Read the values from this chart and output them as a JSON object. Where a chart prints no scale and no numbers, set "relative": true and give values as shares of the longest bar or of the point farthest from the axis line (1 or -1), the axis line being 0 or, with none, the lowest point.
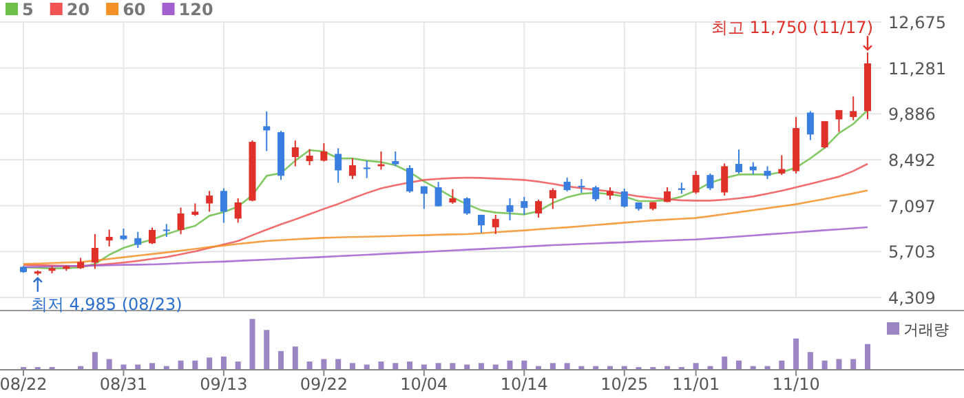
{
  "chart_data": [
    {
      "type": "candlestick",
      "ohlc": [
        [
          5240,
          5260,
          5060,
          5080
        ],
        [
          5035,
          5130,
          4985,
          5100
        ],
        [
          5120,
          5260,
          5040,
          5200
        ],
        [
          5180,
          5280,
          5120,
          5255
        ],
        [
          5200,
          5510,
          5175,
          5385
        ],
        [
          5370,
          6235,
          5180,
          5815
        ],
        [
          6040,
          6370,
          5860,
          6150
        ],
        [
          6190,
          6400,
          6050,
          6080
        ],
        [
          6110,
          6300,
          5815,
          5910
        ],
        [
          5955,
          6430,
          5930,
          6360
        ],
        [
          6370,
          6540,
          6150,
          6350
        ],
        [
          6360,
          7040,
          6230,
          6860
        ],
        [
          6820,
          7165,
          6790,
          6915
        ],
        [
          7165,
          7545,
          6915,
          7405
        ],
        [
          7545,
          7625,
          6580,
          6915
        ],
        [
          6705,
          7320,
          6580,
          7195
        ],
        [
          7250,
          9080,
          7230,
          9035
        ],
        [
          9510,
          9960,
          8755,
          9385
        ],
        [
          9330,
          9370,
          7880,
          8005
        ],
        [
          8575,
          9080,
          8295,
          8870
        ],
        [
          8450,
          8815,
          8325,
          8615
        ],
        [
          8465,
          8995,
          8440,
          8745
        ],
        [
          8670,
          8840,
          7795,
          8170
        ],
        [
          8005,
          8535,
          7905,
          8325
        ],
        [
          8255,
          8465,
          7935,
          8210
        ],
        [
          8295,
          8745,
          8190,
          8355
        ],
        [
          8450,
          8745,
          8295,
          8355
        ],
        [
          8240,
          8325,
          7490,
          7530
        ],
        [
          7685,
          7685,
          7000,
          7460
        ],
        [
          7655,
          7820,
          7070,
          7080
        ],
        [
          7195,
          7600,
          7155,
          7320
        ],
        [
          7320,
          7350,
          6820,
          6860
        ],
        [
          6820,
          6820,
          6275,
          6500
        ],
        [
          6440,
          6820,
          6235,
          6695
        ],
        [
          7110,
          7320,
          6650,
          6905
        ],
        [
          7235,
          7365,
          6820,
          7030
        ],
        [
          6860,
          7280,
          6735,
          7235
        ],
        [
          7320,
          7625,
          7000,
          7570
        ],
        [
          7825,
          7950,
          7530,
          7570
        ],
        [
          7700,
          7905,
          7490,
          7655
        ],
        [
          7655,
          7700,
          7235,
          7295
        ],
        [
          7405,
          7655,
          7280,
          7545
        ],
        [
          7530,
          7615,
          7040,
          7070
        ],
        [
          7195,
          7195,
          6945,
          7000
        ],
        [
          7000,
          7210,
          6955,
          7205
        ],
        [
          7210,
          7655,
          7205,
          7530
        ],
        [
          7625,
          7795,
          7460,
          7575
        ],
        [
          7500,
          8155,
          7460,
          8030
        ],
        [
          8030,
          8075,
          7570,
          7625
        ],
        [
          7500,
          8380,
          7405,
          8295
        ],
        [
          8365,
          8800,
          8075,
          8115
        ],
        [
          8285,
          8420,
          8045,
          8170
        ],
        [
          8155,
          8295,
          7905,
          8005
        ],
        [
          8075,
          8630,
          8030,
          8210
        ],
        [
          8145,
          9790,
          8075,
          9455
        ],
        [
          9925,
          9970,
          9090,
          9260
        ],
        [
          8870,
          9665,
          8840,
          9665
        ],
        [
          9720,
          10000,
          9340,
          10000
        ],
        [
          9790,
          10415,
          9690,
          9970
        ],
        [
          9970,
          11750,
          9720,
          11420
        ]
      ],
      "series": [
        {
          "name": "5",
          "type": "line",
          "color": "#6cc04a",
          "values": [
            5228,
            5210,
            5190,
            5200,
            5225,
            5326,
            5606,
            5815,
            5953,
            6066,
            6233,
            6371,
            6484,
            6790,
            6903,
            7070,
            7417,
            8003,
            8087,
            8463,
            8785,
            8743,
            8534,
            8534,
            8463,
            8421,
            8325,
            8115,
            7835,
            7600,
            7350,
            7140,
            6957,
            6889,
            6861,
            6832,
            6930,
            7182,
            7350,
            7459,
            7488,
            7446,
            7375,
            7237,
            7237,
            7266,
            7375,
            7560,
            7793,
            7935,
            8044,
            8044,
            8044,
            8115,
            8253,
            8534,
            8856,
            9300,
            9580,
            9998
          ]
        },
        {
          "name": "20",
          "type": "line",
          "color": "#f05454",
          "values": [
            5297,
            5290,
            5280,
            5270,
            5258,
            5290,
            5330,
            5370,
            5420,
            5480,
            5537,
            5620,
            5710,
            5815,
            5920,
            6024,
            6200,
            6371,
            6530,
            6680,
            6840,
            6999,
            7150,
            7320,
            7480,
            7626,
            7720,
            7800,
            7877,
            7910,
            7935,
            7948,
            7940,
            7920,
            7900,
            7877,
            7830,
            7760,
            7684,
            7630,
            7580,
            7530,
            7450,
            7380,
            7330,
            7290,
            7260,
            7250,
            7250,
            7280,
            7320,
            7375,
            7460,
            7550,
            7655,
            7760,
            7870,
            7977,
            8150,
            8366
          ]
        },
        {
          "name": "60",
          "type": "line",
          "color": "#f39027",
          "values": [
            5326,
            5340,
            5355,
            5370,
            5384,
            5430,
            5480,
            5530,
            5580,
            5630,
            5677,
            5730,
            5785,
            5840,
            5886,
            5935,
            5980,
            6024,
            6050,
            6075,
            6100,
            6120,
            6135,
            6145,
            6155,
            6165,
            6175,
            6190,
            6200,
            6215,
            6225,
            6233,
            6260,
            6290,
            6320,
            6345,
            6380,
            6410,
            6440,
            6475,
            6510,
            6545,
            6580,
            6615,
            6650,
            6675,
            6700,
            6723,
            6780,
            6840,
            6900,
            6960,
            7020,
            7080,
            7140,
            7220,
            7300,
            7390,
            7470,
            7560
          ]
        },
        {
          "name": "120",
          "type": "line",
          "color": "#a25fd0",
          "values": [
            5229,
            5240,
            5250,
            5260,
            5270,
            5280,
            5290,
            5300,
            5305,
            5313,
            5330,
            5350,
            5370,
            5385,
            5400,
            5420,
            5440,
            5460,
            5480,
            5500,
            5520,
            5540,
            5565,
            5585,
            5605,
            5630,
            5650,
            5670,
            5690,
            5715,
            5735,
            5760,
            5780,
            5805,
            5825,
            5850,
            5875,
            5898,
            5915,
            5935,
            5950,
            5970,
            5985,
            6005,
            6020,
            6040,
            6055,
            6070,
            6100,
            6130,
            6160,
            6190,
            6225,
            6255,
            6285,
            6320,
            6350,
            6380,
            6410,
            6442
          ]
        }
      ],
      "ylim": [
        4309,
        12675
      ],
      "yticks": [
        {
          "value": 4309,
          "label": "4,309"
        },
        {
          "value": 5703,
          "label": "5,703"
        },
        {
          "value": 7097,
          "label": "7,097"
        },
        {
          "value": 8492,
          "label": "8,492"
        },
        {
          "value": 9886,
          "label": "9,886"
        },
        {
          "value": 11281,
          "label": "11,281"
        },
        {
          "value": 12675,
          "label": "12,675"
        }
      ],
      "grid": true,
      "legend": "top left",
      "tick_labels": "y",
      "annotations": [
        "최고 11,750 (11/17)",
        "최저 4,985 (08/23)"
      ]
    },
    {
      "type": "bar",
      "categories": [
        "08/22",
        null,
        null,
        null,
        null,
        null,
        null,
        "08/31",
        null,
        null,
        null,
        null,
        null,
        null,
        "09/13",
        null,
        null,
        null,
        null,
        null,
        null,
        "09/22",
        null,
        null,
        null,
        null,
        null,
        null,
        "10/04",
        null,
        null,
        null,
        null,
        null,
        null,
        "10/14",
        null,
        null,
        null,
        null,
        null,
        null,
        "10/25",
        null,
        null,
        null,
        null,
        "11/01",
        null,
        null,
        null,
        null,
        null,
        null,
        "11/10",
        null,
        null,
        null,
        null,
        null
      ],
      "relative": true,
      "legend": "top right",
      "tick_labels": "x",
      "series": [
        {
          "name": "거래량",
          "color": "#9b85c4",
          "values": [
            0.04,
            0.04,
            0.04,
            0,
            0.06,
            0.34,
            0.2,
            0.09,
            0.09,
            0.12,
            0.06,
            0.17,
            0.17,
            0.23,
            0.25,
            0.15,
            1,
            0.78,
            0.36,
            0.45,
            0.15,
            0.2,
            0.2,
            0.12,
            0.09,
            0.15,
            0.12,
            0.15,
            0.09,
            0.12,
            0.12,
            0.09,
            0.12,
            0.09,
            0.17,
            0.17,
            0.06,
            0.12,
            0.12,
            0.06,
            0.06,
            0.06,
            0.06,
            0.04,
            0.04,
            0.06,
            0.04,
            0.12,
            0.06,
            0.25,
            0.17,
            0.06,
            0.06,
            0.17,
            0.61,
            0.34,
            0.17,
            0.2,
            0.2,
            0.5
          ]
        }
      ]
    }
  ]
}
